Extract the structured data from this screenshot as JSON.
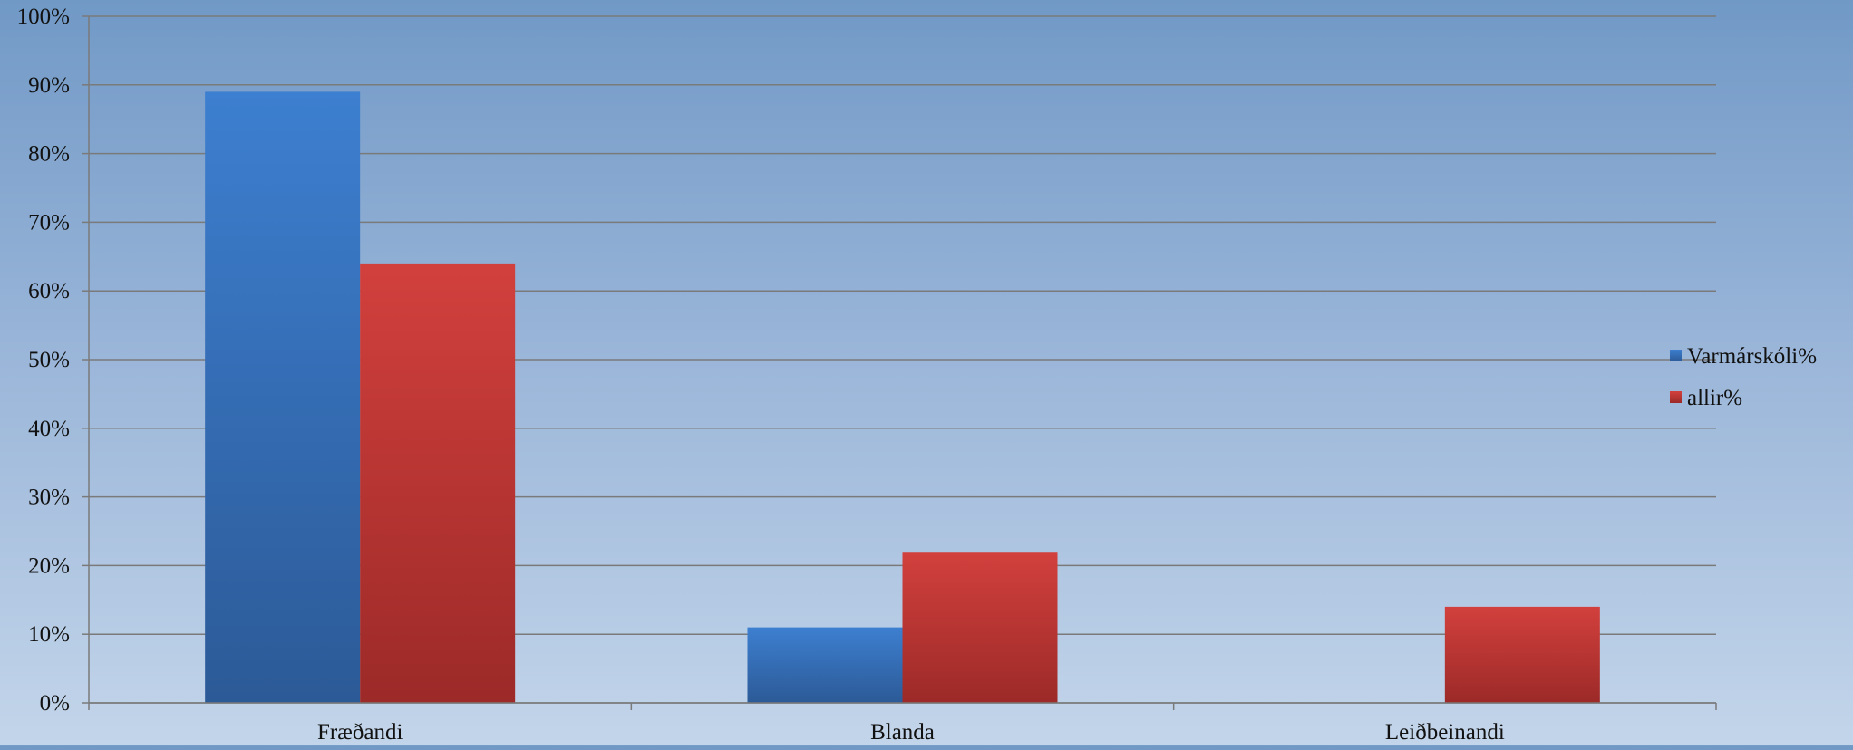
{
  "chart_data": {
    "type": "bar",
    "title": "",
    "xlabel": "",
    "ylabel": "",
    "categories": [
      "Fræðandi",
      "Blanda",
      "Leiðbeinandi"
    ],
    "series": [
      {
        "name": "Varmárskóli%",
        "values": [
          0.89,
          0.11,
          0
        ],
        "color": "#3a76c4"
      },
      {
        "name": "allir%",
        "values": [
          0.64,
          0.22,
          0.14
        ],
        "color": "#c83a38"
      }
    ],
    "ylim": [
      0,
      1
    ],
    "y_ticks": [
      "0%",
      "10%",
      "20%",
      "30%",
      "40%",
      "50%",
      "60%",
      "70%",
      "80%",
      "90%",
      "100%"
    ],
    "grid": true,
    "legend_position": "right"
  }
}
